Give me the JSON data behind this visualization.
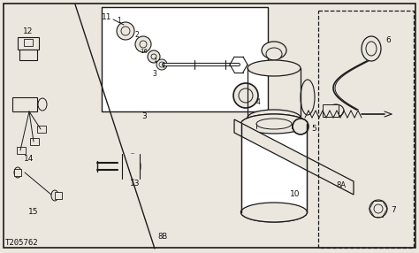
{
  "bg_color": "#ebe7df",
  "line_color": "#1a1a1a",
  "text_color": "#111111",
  "title_text": "T205762",
  "fig_width": 4.74,
  "fig_height": 2.86,
  "dpi": 100
}
